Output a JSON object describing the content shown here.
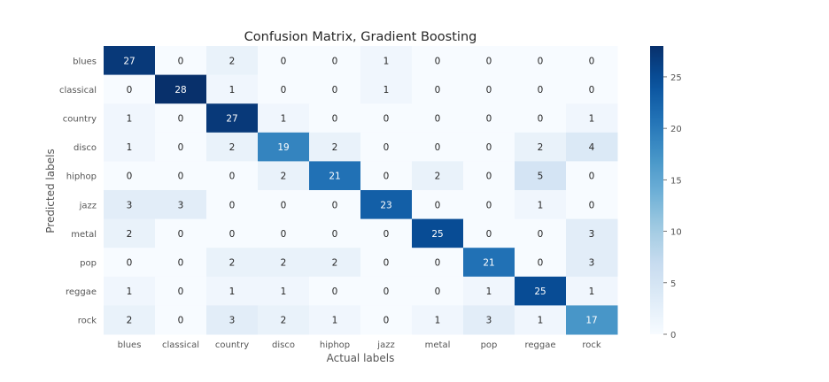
{
  "chart_data": {
    "type": "heatmap",
    "title": "Confusion Matrix, Gradient Boosting",
    "xlabel": "Actual labels",
    "ylabel": "Predicted labels",
    "x_categories": [
      "blues",
      "classical",
      "country",
      "disco",
      "hiphop",
      "jazz",
      "metal",
      "pop",
      "reggae",
      "rock"
    ],
    "y_categories": [
      "blues",
      "classical",
      "country",
      "disco",
      "hiphop",
      "jazz",
      "metal",
      "pop",
      "reggae",
      "rock"
    ],
    "values": [
      [
        27,
        0,
        2,
        0,
        0,
        1,
        0,
        0,
        0,
        0
      ],
      [
        0,
        28,
        1,
        0,
        0,
        1,
        0,
        0,
        0,
        0
      ],
      [
        1,
        0,
        27,
        1,
        0,
        0,
        0,
        0,
        0,
        1
      ],
      [
        1,
        0,
        2,
        19,
        2,
        0,
        0,
        0,
        2,
        4
      ],
      [
        0,
        0,
        0,
        2,
        21,
        0,
        2,
        0,
        5,
        0
      ],
      [
        3,
        3,
        0,
        0,
        0,
        23,
        0,
        0,
        1,
        0
      ],
      [
        2,
        0,
        0,
        0,
        0,
        0,
        25,
        0,
        0,
        3
      ],
      [
        0,
        0,
        2,
        2,
        2,
        0,
        0,
        21,
        0,
        3
      ],
      [
        1,
        0,
        1,
        1,
        0,
        0,
        0,
        1,
        25,
        1
      ],
      [
        2,
        0,
        3,
        2,
        1,
        0,
        1,
        3,
        1,
        17
      ]
    ],
    "colormap": "Blues",
    "color_range": [
      0,
      28
    ],
    "colorbar_ticks": [
      0,
      5,
      10,
      15,
      20,
      25
    ],
    "colors": {
      "low": "#f7fbff",
      "high": "#08306b",
      "text_dark": "#262626",
      "text_light": "#ffffff",
      "tick_text": "#555555"
    }
  }
}
